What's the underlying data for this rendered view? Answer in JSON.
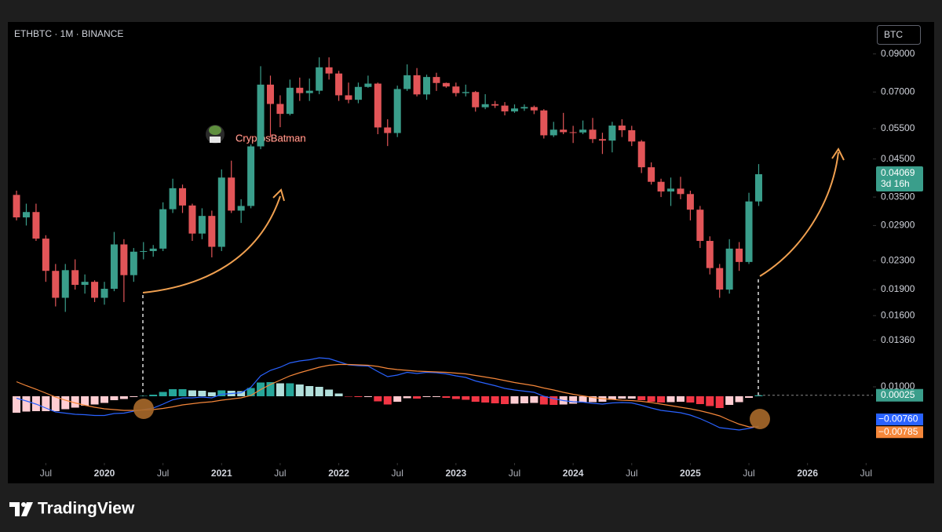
{
  "chart_data": {
    "type": "candlestick",
    "title": "ETHBTC · 1M · BINANCE",
    "currency": "BTC",
    "annotation": "CryptosBatman",
    "watermark": "TradingView",
    "log": true,
    "up_color": "#3a9e8b",
    "down_color": "#e25558",
    "ylim": [
      0.01,
      0.11
    ],
    "yticks": [
      {
        "value": 0.09,
        "label": "0.09000"
      },
      {
        "value": 0.07,
        "label": "0.07000"
      },
      {
        "value": 0.055,
        "label": "0.05500"
      },
      {
        "value": 0.045,
        "label": "0.04500"
      },
      {
        "value": 0.035,
        "label": "0.03500"
      },
      {
        "value": 0.029,
        "label": "0.02900"
      },
      {
        "value": 0.023,
        "label": "0.02300"
      },
      {
        "value": 0.019,
        "label": "0.01900"
      },
      {
        "value": 0.016,
        "label": "0.01600"
      },
      {
        "value": 0.0136,
        "label": "0.01360"
      },
      {
        "value": 0.01,
        "label": "0.01000"
      }
    ],
    "xticks": [
      {
        "value": "2019-07",
        "label": "Jul"
      },
      {
        "value": "2020-01",
        "label": "2020"
      },
      {
        "value": "2020-07",
        "label": "Jul"
      },
      {
        "value": "2021-01",
        "label": "2021"
      },
      {
        "value": "2021-07",
        "label": "Jul"
      },
      {
        "value": "2022-01",
        "label": "2022"
      },
      {
        "value": "2022-07",
        "label": "Jul"
      },
      {
        "value": "2023-01",
        "label": "2023"
      },
      {
        "value": "2023-07",
        "label": "Jul"
      },
      {
        "value": "2024-01",
        "label": "2024"
      },
      {
        "value": "2024-07",
        "label": "Jul"
      },
      {
        "value": "2025-01",
        "label": "2025"
      },
      {
        "value": "2025-07",
        "label": "Jul"
      },
      {
        "value": "2026-01",
        "label": "2026"
      },
      {
        "value": "2026-07",
        "label": "Jul"
      }
    ],
    "last_price": {
      "value": 0.04069,
      "label": "0.04069"
    },
    "countdown": "3d 16h",
    "x": [
      "2019-04",
      "2019-05",
      "2019-06",
      "2019-07",
      "2019-08",
      "2019-09",
      "2019-10",
      "2019-11",
      "2019-12",
      "2020-01",
      "2020-02",
      "2020-03",
      "2020-04",
      "2020-05",
      "2020-06",
      "2020-07",
      "2020-08",
      "2020-09",
      "2020-10",
      "2020-11",
      "2020-12",
      "2021-01",
      "2021-02",
      "2021-03",
      "2021-04",
      "2021-05",
      "2021-06",
      "2021-07",
      "2021-08",
      "2021-09",
      "2021-10",
      "2021-11",
      "2021-12",
      "2022-01",
      "2022-02",
      "2022-03",
      "2022-04",
      "2022-05",
      "2022-06",
      "2022-07",
      "2022-08",
      "2022-09",
      "2022-10",
      "2022-11",
      "2022-12",
      "2023-01",
      "2023-02",
      "2023-03",
      "2023-04",
      "2023-05",
      "2023-06",
      "2023-07",
      "2023-08",
      "2023-09",
      "2023-10",
      "2023-11",
      "2023-12",
      "2024-01",
      "2024-02",
      "2024-03",
      "2024-04",
      "2024-05",
      "2024-06",
      "2024-07",
      "2024-08",
      "2024-09",
      "2024-10",
      "2024-11",
      "2024-12",
      "2025-01",
      "2025-02",
      "2025-03",
      "2025-04",
      "2025-05",
      "2025-06",
      "2025-07",
      "2025-08"
    ],
    "open": [
      0.0355,
      0.0306,
      0.0317,
      0.0266,
      0.0215,
      0.018,
      0.0216,
      0.0196,
      0.02,
      0.018,
      0.0191,
      0.0256,
      0.0209,
      0.0244,
      0.0245,
      0.0249,
      0.0323,
      0.0371,
      0.0331,
      0.0275,
      0.0309,
      0.0252,
      0.0398,
      0.032,
      0.033,
      0.0489,
      0.0735,
      0.0647,
      0.0606,
      0.072,
      0.0695,
      0.0706,
      0.0824,
      0.0791,
      0.0685,
      0.0665,
      0.0724,
      0.074,
      0.0554,
      0.0534,
      0.0714,
      0.0782,
      0.0689,
      0.0773,
      0.0743,
      0.0726,
      0.0695,
      0.07,
      0.0633,
      0.0646,
      0.064,
      0.0616,
      0.0628,
      0.0634,
      0.062,
      0.0526,
      0.0546,
      0.0537,
      0.0536,
      0.0546,
      0.0513,
      0.0508,
      0.0561,
      0.0544,
      0.0505,
      0.0426,
      0.0387,
      0.0363,
      0.037,
      0.0357,
      0.0322,
      0.0262,
      0.0219,
      0.019,
      0.0249,
      0.0228,
      0.034
    ],
    "high": [
      0.0365,
      0.0335,
      0.0335,
      0.0272,
      0.0225,
      0.0225,
      0.0232,
      0.021,
      0.0202,
      0.02,
      0.0278,
      0.0265,
      0.025,
      0.026,
      0.0255,
      0.0338,
      0.0395,
      0.038,
      0.0335,
      0.0325,
      0.032,
      0.042,
      0.0445,
      0.0345,
      0.0495,
      0.083,
      0.078,
      0.0685,
      0.076,
      0.077,
      0.0765,
      0.088,
      0.088,
      0.0805,
      0.0745,
      0.0745,
      0.078,
      0.0745,
      0.0585,
      0.073,
      0.084,
      0.082,
      0.0785,
      0.0795,
      0.0745,
      0.0745,
      0.0735,
      0.0705,
      0.069,
      0.066,
      0.0655,
      0.0645,
      0.0645,
      0.064,
      0.0625,
      0.0575,
      0.061,
      0.056,
      0.058,
      0.059,
      0.0535,
      0.0575,
      0.0585,
      0.056,
      0.051,
      0.044,
      0.0395,
      0.0398,
      0.04,
      0.0365,
      0.033,
      0.027,
      0.0225,
      0.0265,
      0.026,
      0.036,
      0.0435
    ],
    "low": [
      0.03,
      0.029,
      0.0262,
      0.02,
      0.017,
      0.0164,
      0.019,
      0.0185,
      0.0175,
      0.0172,
      0.0188,
      0.0175,
      0.02,
      0.0232,
      0.0236,
      0.0245,
      0.0315,
      0.0315,
      0.0262,
      0.0265,
      0.0235,
      0.0245,
      0.0315,
      0.0295,
      0.0325,
      0.048,
      0.052,
      0.0555,
      0.06,
      0.066,
      0.066,
      0.069,
      0.076,
      0.066,
      0.065,
      0.065,
      0.072,
      0.053,
      0.049,
      0.052,
      0.0705,
      0.068,
      0.0665,
      0.0705,
      0.072,
      0.068,
      0.068,
      0.0615,
      0.0625,
      0.063,
      0.06,
      0.061,
      0.0618,
      0.0605,
      0.0515,
      0.052,
      0.053,
      0.05,
      0.053,
      0.05,
      0.0465,
      0.047,
      0.052,
      0.049,
      0.041,
      0.038,
      0.035,
      0.033,
      0.0345,
      0.03,
      0.025,
      0.021,
      0.018,
      0.0185,
      0.0215,
      0.0225,
      0.033
    ],
    "close": [
      0.0306,
      0.0317,
      0.0266,
      0.0215,
      0.018,
      0.0216,
      0.0196,
      0.02,
      0.018,
      0.0191,
      0.0256,
      0.0209,
      0.0244,
      0.0245,
      0.0249,
      0.0323,
      0.0371,
      0.0331,
      0.0275,
      0.0309,
      0.0252,
      0.0398,
      0.032,
      0.033,
      0.0489,
      0.0735,
      0.0647,
      0.0606,
      0.072,
      0.0695,
      0.0706,
      0.0824,
      0.0791,
      0.0685,
      0.0665,
      0.0724,
      0.074,
      0.0554,
      0.0534,
      0.0714,
      0.0782,
      0.0689,
      0.0773,
      0.0743,
      0.0726,
      0.0695,
      0.07,
      0.0633,
      0.0646,
      0.064,
      0.0616,
      0.0628,
      0.0634,
      0.062,
      0.0526,
      0.0546,
      0.0537,
      0.0536,
      0.0546,
      0.0513,
      0.0508,
      0.0561,
      0.0544,
      0.0505,
      0.0426,
      0.0387,
      0.0363,
      0.037,
      0.0357,
      0.0322,
      0.0262,
      0.0219,
      0.019,
      0.0249,
      0.0228,
      0.034,
      0.04069
    ],
    "indicator": {
      "type": "macd",
      "ylim": [
        -0.015,
        0.013
      ],
      "histogram": {
        "colors": [
          "#26a69a",
          "#b2dfdb",
          "#ffcdd2",
          "#f23645"
        ],
        "values": [
          -0.0042,
          -0.0039,
          -0.0038,
          -0.0038,
          -0.0038,
          -0.0033,
          -0.0029,
          -0.0024,
          -0.0021,
          -0.0017,
          -0.001,
          -0.0007,
          -0.0002,
          0.0001,
          0.0004,
          0.0011,
          0.0018,
          0.0018,
          0.0015,
          0.0014,
          0.001,
          0.0015,
          0.0014,
          0.0013,
          0.0021,
          0.0035,
          0.0036,
          0.0033,
          0.0033,
          0.003,
          0.0026,
          0.0024,
          0.0017,
          0.0007,
          -0.0001,
          -0.0002,
          -0.0002,
          -0.0013,
          -0.0021,
          -0.0014,
          -0.0005,
          -0.0006,
          -0.0002,
          -0.0002,
          -0.0004,
          -0.0007,
          -0.0009,
          -0.0014,
          -0.0016,
          -0.0018,
          -0.002,
          -0.0019,
          -0.0018,
          -0.0017,
          -0.0021,
          -0.0022,
          -0.0021,
          -0.0019,
          -0.0016,
          -0.0015,
          -0.0014,
          -0.0009,
          -0.0006,
          -0.0006,
          -0.001,
          -0.0014,
          -0.0016,
          -0.0015,
          -0.0014,
          -0.0016,
          -0.002,
          -0.0025,
          -0.003,
          -0.0022,
          -0.0015,
          -0.0004,
          0.00025
        ],
        "last_label": {
          "value": 0.00025,
          "label": "0.00025"
        }
      },
      "series": [
        {
          "color": "#2962ff",
          "values": [
            -0.0005,
            -0.0012,
            -0.002,
            -0.003,
            -0.004,
            -0.0043,
            -0.0046,
            -0.0047,
            -0.0049,
            -0.0049,
            -0.0044,
            -0.0043,
            -0.0038,
            -0.0034,
            -0.003,
            -0.002,
            -0.0009,
            -0.0004,
            -0.0004,
            -0.0002,
            -0.0004,
            0.0005,
            0.0007,
            0.0009,
            0.0023,
            0.0052,
            0.0066,
            0.0074,
            0.0085,
            0.009,
            0.0093,
            0.0098,
            0.0096,
            0.0088,
            0.008,
            0.0078,
            0.0077,
            0.0063,
            0.005,
            0.0054,
            0.0061,
            0.0058,
            0.0061,
            0.006,
            0.0057,
            0.0052,
            0.0048,
            0.0039,
            0.0033,
            0.0027,
            0.002,
            0.0016,
            0.0013,
            0.001,
            0,
            -0.0006,
            -0.0011,
            -0.0014,
            -0.0015,
            -0.0018,
            -0.002,
            -0.0017,
            -0.0016,
            -0.0017,
            -0.0023,
            -0.003,
            -0.0036,
            -0.0039,
            -0.0042,
            -0.0048,
            -0.0057,
            -0.0068,
            -0.008,
            -0.0083,
            -0.0086,
            -0.0082,
            -0.0076
          ],
          "last_label": {
            "value": -0.0076,
            "label": "−0.00760"
          }
        },
        {
          "color": "#f5873a",
          "values": [
            0.0037,
            0.0027,
            0.0018,
            0.0008,
            -0.0002,
            -0.001,
            -0.0017,
            -0.0023,
            -0.0028,
            -0.0032,
            -0.0034,
            -0.0036,
            -0.0036,
            -0.0035,
            -0.0034,
            -0.0031,
            -0.0027,
            -0.0022,
            -0.0019,
            -0.0016,
            -0.0014,
            -0.001,
            -0.0007,
            -0.0004,
            0.0002,
            0.0017,
            0.003,
            0.0041,
            0.0052,
            0.006,
            0.0067,
            0.0074,
            0.0079,
            0.0081,
            0.0081,
            0.008,
            0.0079,
            0.0076,
            0.0071,
            0.0068,
            0.0066,
            0.0064,
            0.0063,
            0.0062,
            0.0061,
            0.0059,
            0.0057,
            0.0053,
            0.0049,
            0.0045,
            0.004,
            0.0035,
            0.0031,
            0.0027,
            0.0021,
            0.0016,
            0.001,
            0.0005,
            0.0001,
            -0.0003,
            -0.0006,
            -0.0008,
            -0.001,
            -0.0011,
            -0.0013,
            -0.0016,
            -0.002,
            -0.0024,
            -0.0028,
            -0.0032,
            -0.0037,
            -0.0043,
            -0.005,
            -0.0061,
            -0.0071,
            -0.0078,
            -0.00785
          ],
          "last_label": {
            "value": -0.00785,
            "label": "−0.00785"
          }
        }
      ]
    }
  }
}
